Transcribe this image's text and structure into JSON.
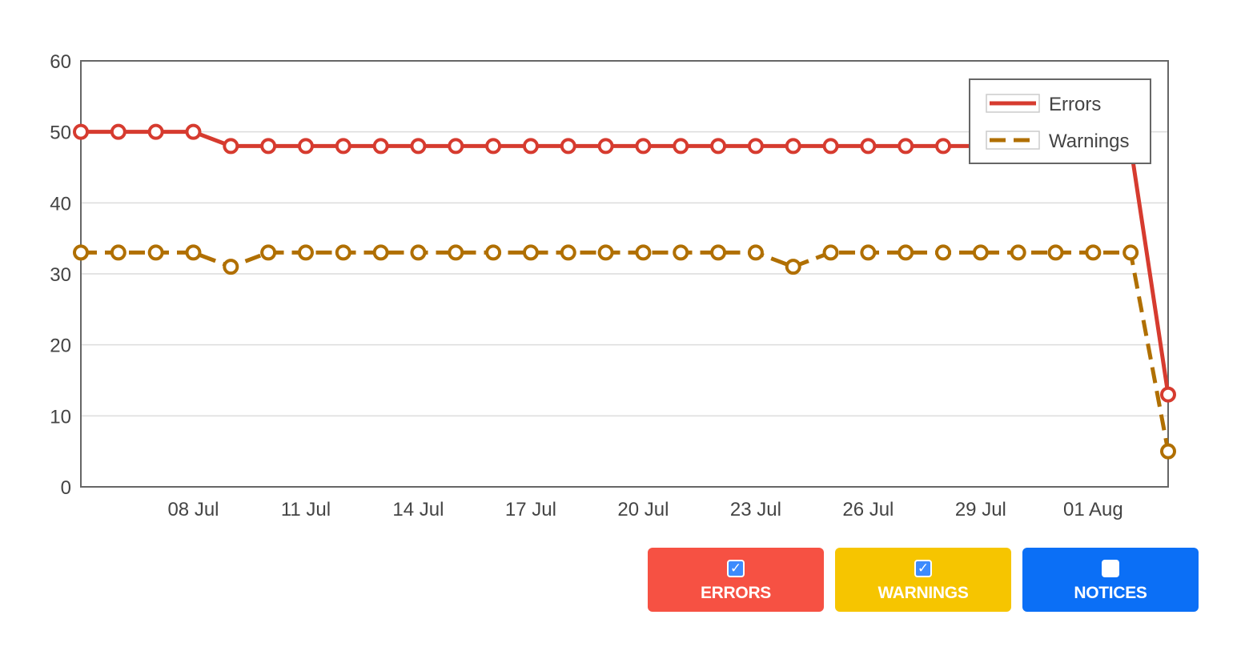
{
  "chart_data": {
    "type": "line",
    "x": [
      "05 Jul",
      "06 Jul",
      "07 Jul",
      "08 Jul",
      "09 Jul",
      "10 Jul",
      "11 Jul",
      "12 Jul",
      "13 Jul",
      "14 Jul",
      "15 Jul",
      "16 Jul",
      "17 Jul",
      "18 Jul",
      "19 Jul",
      "20 Jul",
      "21 Jul",
      "22 Jul",
      "23 Jul",
      "24 Jul",
      "25 Jul",
      "26 Jul",
      "27 Jul",
      "28 Jul",
      "29 Jul",
      "30 Jul",
      "31 Jul",
      "01 Aug",
      "02 Aug",
      "03 Aug"
    ],
    "x_ticks": [
      "08 Jul",
      "11 Jul",
      "14 Jul",
      "17 Jul",
      "20 Jul",
      "23 Jul",
      "26 Jul",
      "29 Jul",
      "01 Aug"
    ],
    "ylim": [
      0,
      60
    ],
    "y_ticks": [
      0,
      10,
      20,
      30,
      40,
      50,
      60
    ],
    "grid": true,
    "legend_position": "top-right",
    "series": [
      {
        "name": "Errors",
        "color": "#d63b2f",
        "style": "solid",
        "values": [
          50,
          50,
          50,
          50,
          48,
          48,
          48,
          48,
          48,
          48,
          48,
          48,
          48,
          48,
          48,
          48,
          48,
          48,
          48,
          48,
          48,
          48,
          48,
          48,
          48,
          48,
          48,
          48,
          48,
          13
        ]
      },
      {
        "name": "Warnings",
        "color": "#b06f00",
        "style": "dashed",
        "values": [
          33,
          33,
          33,
          33,
          31,
          33,
          33,
          33,
          33,
          33,
          33,
          33,
          33,
          33,
          33,
          33,
          33,
          33,
          33,
          31,
          33,
          33,
          33,
          33,
          33,
          33,
          33,
          33,
          33,
          5
        ]
      }
    ]
  },
  "toggles": [
    {
      "label": "ERRORS",
      "checked": true,
      "color": "#f65143",
      "icon": "checkbox-checked-icon"
    },
    {
      "label": "WARNINGS",
      "checked": true,
      "color": "#f6c500",
      "icon": "checkbox-checked-icon"
    },
    {
      "label": "NOTICES",
      "checked": false,
      "color": "#0b6ff6",
      "icon": "checkbox-empty-icon"
    }
  ]
}
